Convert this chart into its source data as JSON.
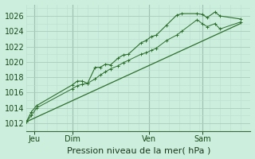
{
  "bg_color": "#cceedd",
  "plot_bg_color": "#cceedd",
  "grid_color_major": "#aaccbb",
  "grid_color_minor": "#bbddd0",
  "line_color": "#2d6e2d",
  "xlabel": "Pression niveau de la mer( hPa )",
  "yticks": [
    1012,
    1014,
    1016,
    1018,
    1020,
    1022,
    1024,
    1026
  ],
  "ylim": [
    1011.0,
    1027.5
  ],
  "xlim": [
    0.0,
    8.8
  ],
  "day_labels": [
    "Jeu",
    "Dim",
    "Ven",
    "Sam"
  ],
  "day_positions": [
    0.3,
    1.8,
    4.8,
    6.9
  ],
  "vline_positions": [
    0.3,
    1.8,
    4.8,
    6.9
  ],
  "series1_x": [
    0.0,
    0.2,
    0.4,
    1.8,
    2.0,
    2.2,
    2.4,
    2.7,
    2.9,
    3.1,
    3.3,
    3.6,
    3.8,
    4.0,
    4.5,
    4.7,
    4.9,
    5.1,
    5.5,
    5.9,
    6.1,
    6.7,
    6.9,
    7.1,
    7.4,
    7.6,
    8.4
  ],
  "series1_y": [
    1012.2,
    1013.5,
    1014.3,
    1017.0,
    1017.5,
    1017.5,
    1017.2,
    1019.3,
    1019.3,
    1019.7,
    1019.6,
    1020.5,
    1020.9,
    1021.0,
    1022.5,
    1022.8,
    1023.3,
    1023.5,
    1024.8,
    1026.1,
    1026.3,
    1026.3,
    1026.2,
    1025.8,
    1026.5,
    1026.0,
    1025.6
  ],
  "series2_x": [
    0.0,
    0.2,
    0.4,
    1.8,
    2.0,
    2.2,
    2.4,
    2.7,
    2.9,
    3.1,
    3.3,
    3.6,
    3.8,
    4.0,
    4.5,
    4.7,
    4.9,
    5.1,
    5.5,
    5.9,
    6.1,
    6.7,
    6.9,
    7.1,
    7.4,
    7.6,
    8.4
  ],
  "series2_y": [
    1012.2,
    1013.0,
    1014.0,
    1016.5,
    1016.9,
    1017.1,
    1017.2,
    1017.8,
    1018.3,
    1018.7,
    1019.1,
    1019.5,
    1019.9,
    1020.2,
    1021.0,
    1021.2,
    1021.5,
    1021.8,
    1022.8,
    1023.5,
    1024.0,
    1025.5,
    1025.0,
    1024.6,
    1025.0,
    1024.3,
    1025.2
  ],
  "trend_x": [
    0.0,
    8.4
  ],
  "trend_y": [
    1012.2,
    1025.0
  ],
  "xlabel_fontsize": 8.0,
  "tick_fontsize": 7.0
}
